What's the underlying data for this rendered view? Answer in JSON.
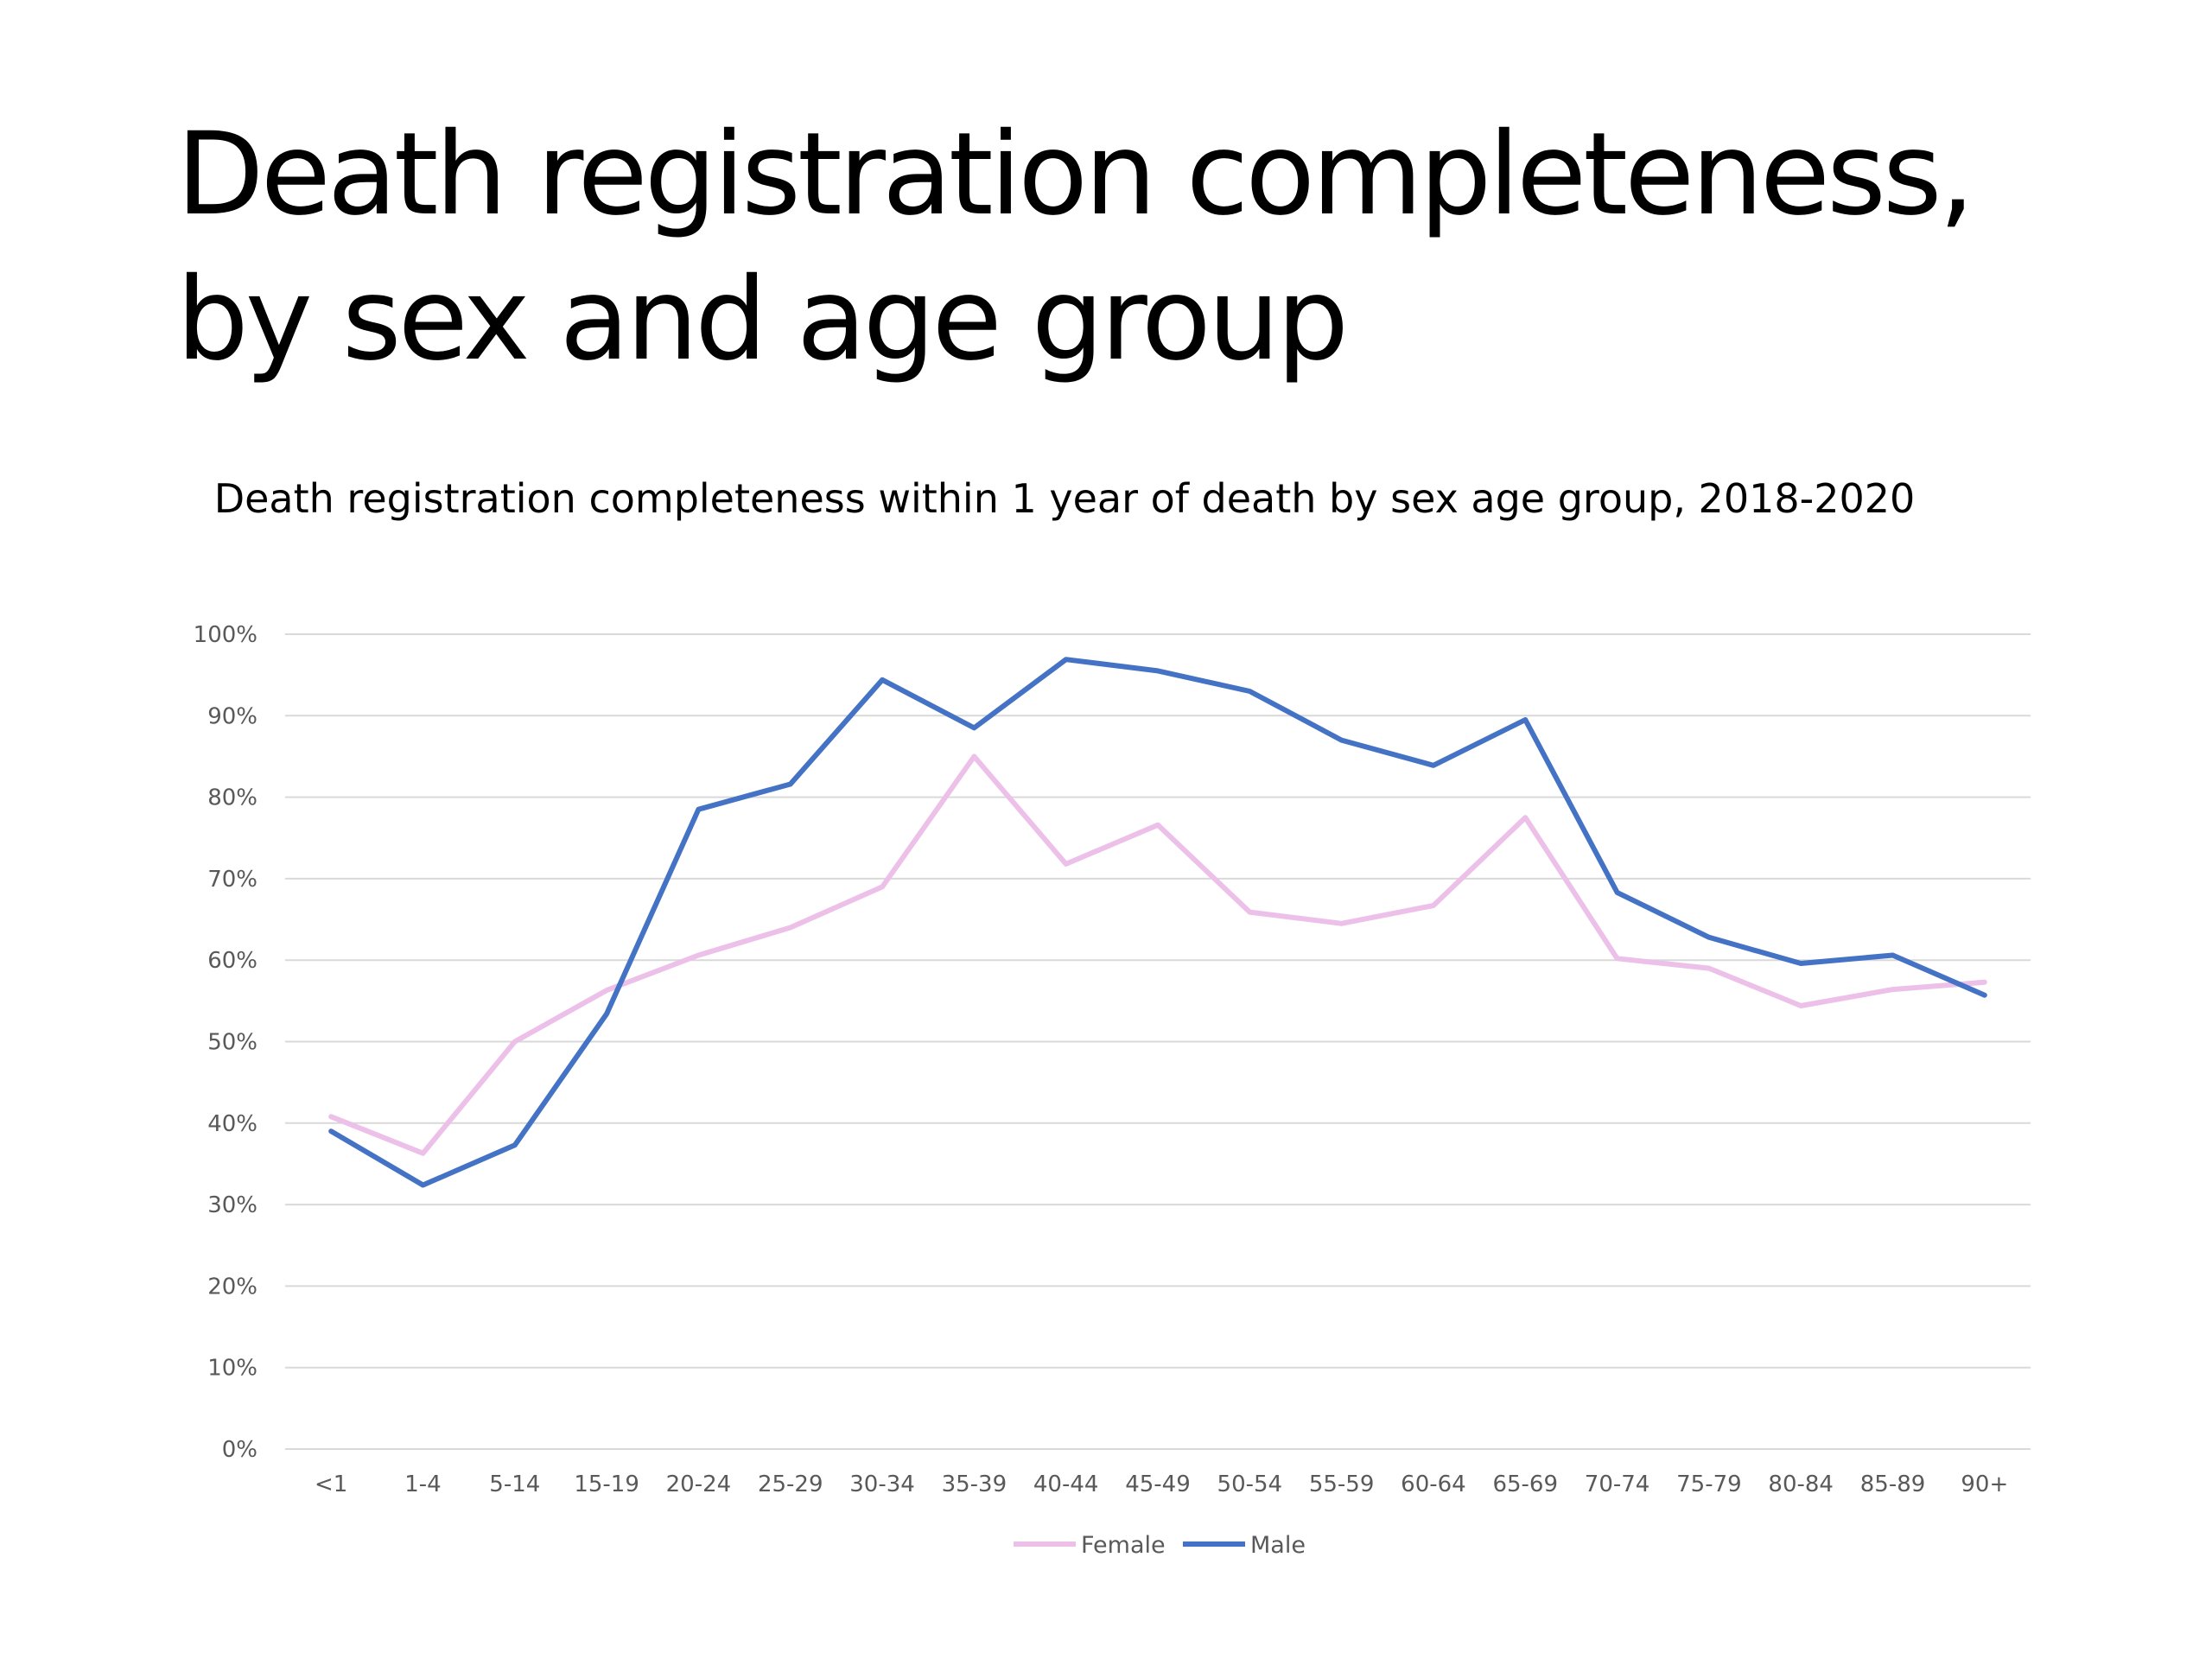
{
  "slide": {
    "title_line1": "Death registration completeness,",
    "title_line2": "by sex and age group"
  },
  "chart_data": {
    "type": "line",
    "title": "Death registration completeness within 1 year of death by sex age group, 2018-2020",
    "xlabel": "",
    "ylabel": "",
    "categories": [
      "<1",
      "1-4",
      "5-14",
      "15-19",
      "20-24",
      "25-29",
      "30-34",
      "35-39",
      "40-44",
      "45-49",
      "50-54",
      "55-59",
      "60-64",
      "65-69",
      "70-74",
      "75-79",
      "80-84",
      "85-89",
      "90+"
    ],
    "ylim": [
      0,
      100
    ],
    "y_ticks": [
      0,
      10,
      20,
      30,
      40,
      50,
      60,
      70,
      80,
      90,
      100
    ],
    "y_tick_labels": [
      "0%",
      "10%",
      "20%",
      "30%",
      "40%",
      "50%",
      "60%",
      "70%",
      "80%",
      "90%",
      "100%"
    ],
    "grid": true,
    "legend_position": "bottom",
    "series": [
      {
        "name": "Female",
        "color": "#ecc0e8",
        "values": [
          40.8,
          36.3,
          50.0,
          56.3,
          60.6,
          64.0,
          69.0,
          85.0,
          71.8,
          76.6,
          65.9,
          64.5,
          66.7,
          77.5,
          60.2,
          59.0,
          54.4,
          56.4,
          57.3
        ]
      },
      {
        "name": "Male",
        "color": "#4472c4",
        "values": [
          39.0,
          32.4,
          37.3,
          53.4,
          78.5,
          81.6,
          94.4,
          88.5,
          96.9,
          95.5,
          93.0,
          87.0,
          83.9,
          89.5,
          68.3,
          62.8,
          59.6,
          60.6,
          55.7
        ]
      }
    ]
  },
  "colors": {
    "gridline": "#d9d9d9",
    "tick_text": "#595959"
  }
}
